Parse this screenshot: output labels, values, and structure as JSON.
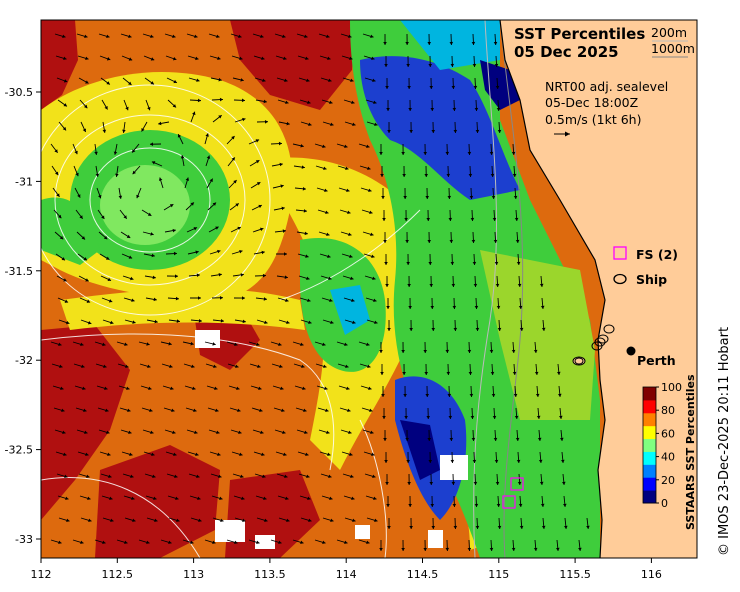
{
  "title": {
    "line1": "SST Percentiles",
    "line2": "05 Dec 2025"
  },
  "depth_legend": {
    "contour_1": "200m",
    "contour_2": "1000m"
  },
  "current_info": {
    "line1": "NRT00 adj. sealevel",
    "line2": "05-Dec 18:00Z",
    "line3": "0.5m/s (1kt 6h)"
  },
  "markers": {
    "fs_label": "FS (2)",
    "ship_label": "Ship",
    "perth_label": "Perth"
  },
  "colorbar": {
    "title": "SSTAARS SST Percentiles",
    "ticks": [
      "100",
      "80",
      "60",
      "40",
      "20",
      "0"
    ],
    "colors": [
      "#00007f",
      "#0000ff",
      "#0080ff",
      "#00ffff",
      "#80ff80",
      "#ffff00",
      "#ff8000",
      "#ff0000",
      "#800000"
    ]
  },
  "credit": "© IMOS 23-Dec-2025 20:11 Hobart",
  "axes": {
    "x_ticks": [
      "112",
      "112.5",
      "113",
      "113.5",
      "114",
      "114.5",
      "115",
      "115.5",
      "116"
    ],
    "y_ticks": [
      "-30.5",
      "-31",
      "-31.5",
      "-32",
      "-32.5",
      "-33"
    ]
  },
  "colors": {
    "land": "#ffcc99",
    "deep_red": "#b01010",
    "orange": "#dd6a0e",
    "yellow": "#f2e21a",
    "green": "#3fcd3c",
    "blue": "#1c3fcf",
    "fs_marker": "#ff00ff"
  }
}
